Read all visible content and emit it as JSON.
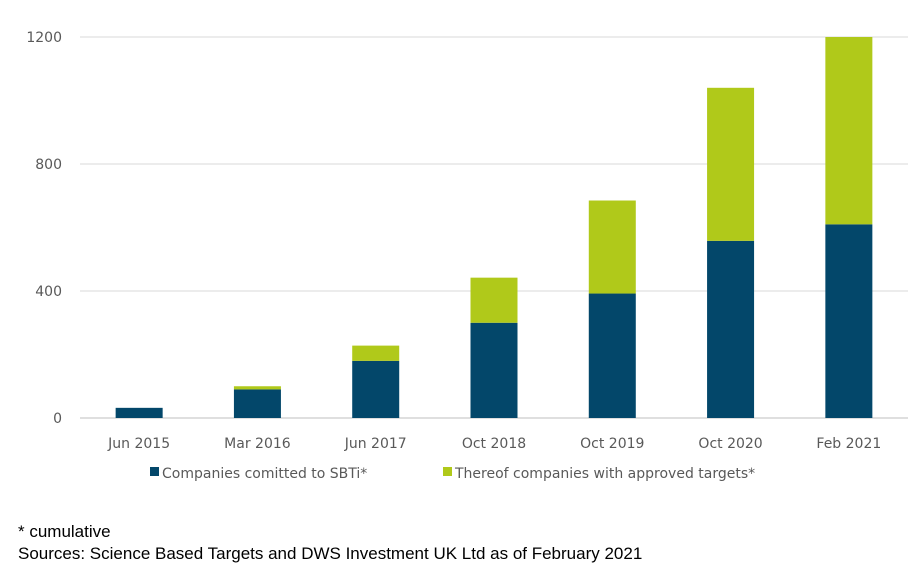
{
  "chart_data": {
    "type": "bar",
    "stacked": true,
    "categories": [
      "Jun 2015",
      "Mar 2016",
      "Jun 2017",
      "Oct 2018",
      "Oct 2019",
      "Oct 2020",
      "Feb 2021"
    ],
    "series": [
      {
        "name": "Companies comitted to SBTi*",
        "color": "#03476a",
        "values": [
          32,
          90,
          180,
          300,
          392,
          558,
          610
        ]
      },
      {
        "name": "Thereof companies with approved targets*",
        "color": "#b0c91a",
        "values": [
          0,
          10,
          48,
          142,
          293,
          482,
          590
        ]
      }
    ],
    "y_ticks": [
      0,
      400,
      800,
      1200
    ],
    "ylim": [
      0,
      1200
    ],
    "grid": true,
    "legend_position": "bottom"
  },
  "notes": {
    "cumulative": "* cumulative",
    "sources": "Sources: Science Based Targets and DWS Investment UK Ltd as of February 2021"
  }
}
